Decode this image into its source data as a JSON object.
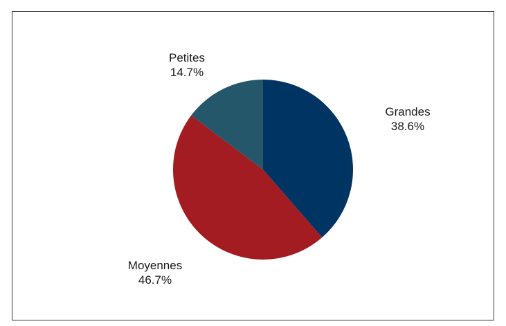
{
  "chart_data": {
    "type": "pie",
    "title": "",
    "slices": [
      {
        "name": "Grandes",
        "value": 38.6,
        "label": "38.6%",
        "color": "#003462"
      },
      {
        "name": "Moyennes",
        "value": 46.7,
        "label": "46.7%",
        "color": "#a31c22"
      },
      {
        "name": "Petites",
        "value": 14.7,
        "label": "14.7%",
        "color": "#245769"
      }
    ],
    "start_angle": "12 o'clock",
    "direction": "clockwise",
    "legend": "none",
    "labels_outside": true
  }
}
